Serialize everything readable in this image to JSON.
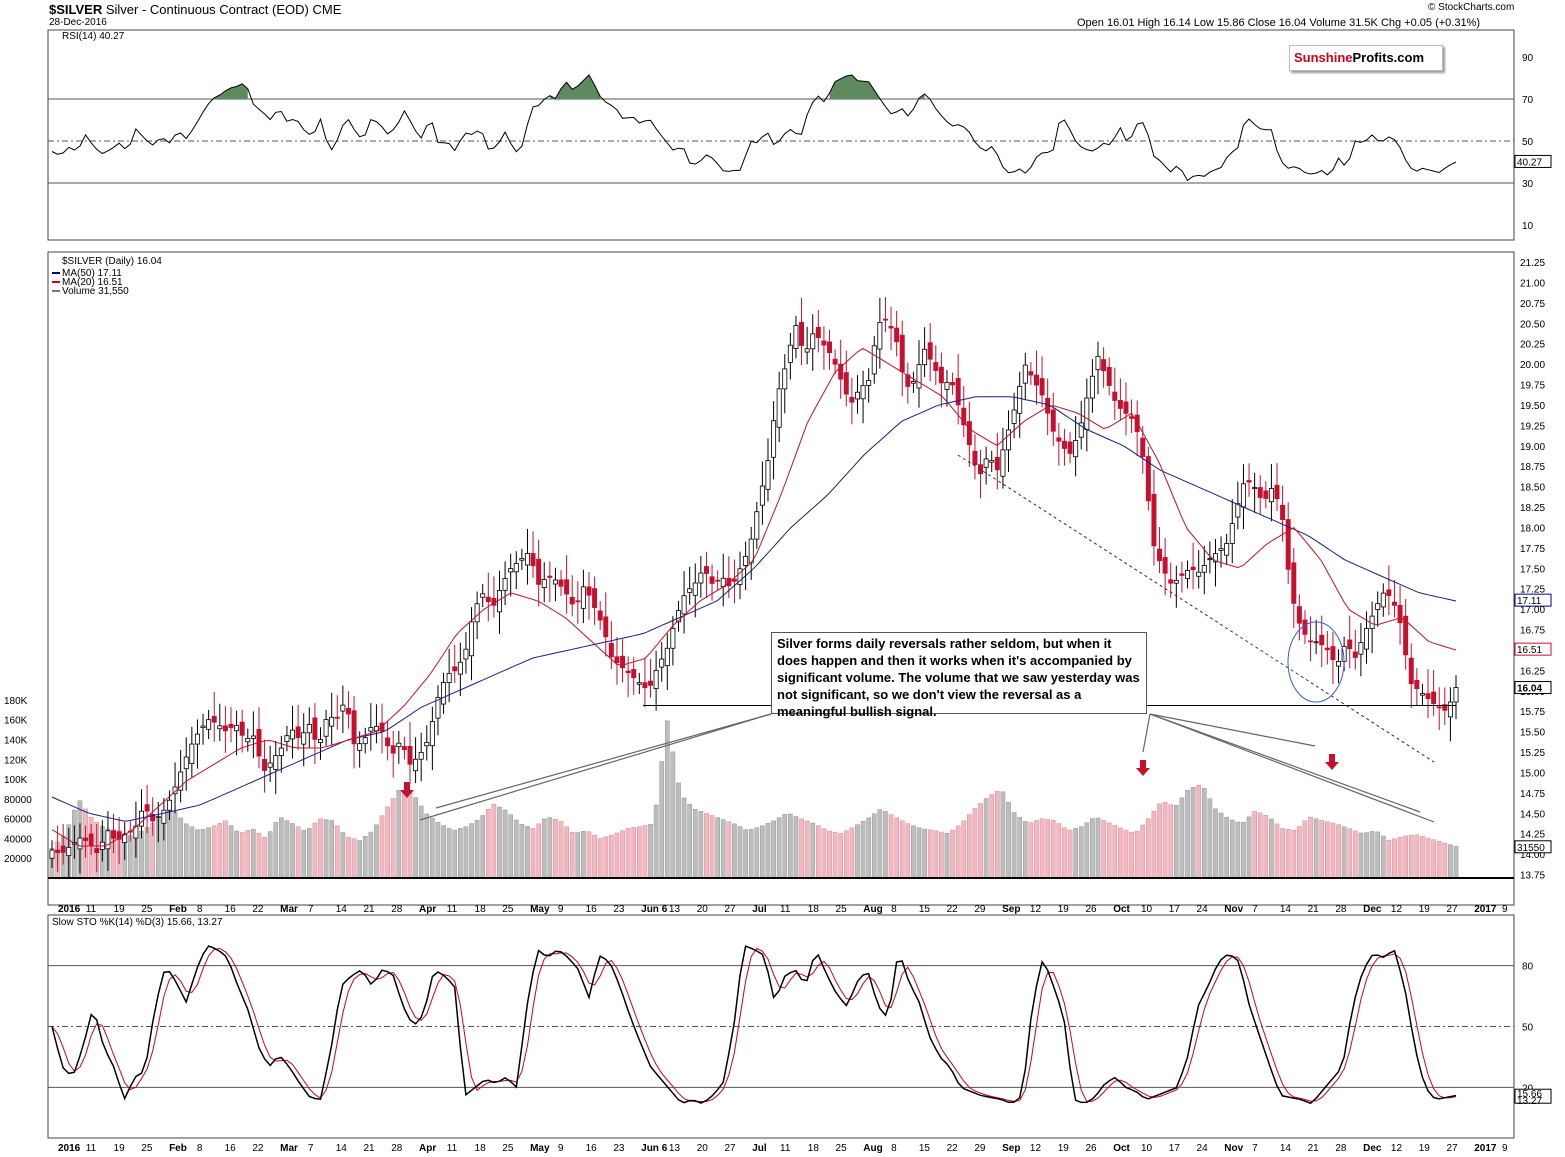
{
  "header": {
    "symbol": "$SILVER",
    "description": "Silver - Continuous Contract (EOD)",
    "exchange": "CME",
    "date": "28-Dec-2016",
    "credit": "© StockCharts.com",
    "ohlc": "Open 16.01  High 16.14  Low 15.86  Close 16.04  Volume 31.5K  Chg +0.05 (+0.31%)"
  },
  "logo": {
    "part1": "Sunshine",
    "part2": "Profits.com"
  },
  "annotation": "Silver forms daily reversals rather seldom, but when it does happen and then it works when it's accompanied by significant volume. The volume that we saw yesterday was not significant, so we don't view the reversal as a meaningful bullish signal.",
  "chart_data": [
    {
      "type": "line",
      "title": "RSI(14) 40.27",
      "ylim": [
        0,
        100
      ],
      "y_ticks": [
        "90",
        "70",
        "50",
        "30",
        "10"
      ],
      "reference_lines": [
        70,
        50,
        30
      ],
      "last_value_label": "40.27",
      "y_sample": [
        45,
        43,
        47,
        45,
        53,
        47,
        44,
        46,
        49,
        45,
        56,
        51,
        48,
        52,
        49,
        55,
        51,
        57,
        64,
        70,
        72,
        75,
        76,
        78,
        67,
        64,
        60,
        66,
        59,
        61,
        55,
        52,
        61,
        44,
        51,
        62,
        55,
        50,
        61,
        58,
        53,
        57,
        65,
        56,
        51,
        62,
        48,
        50,
        45,
        54,
        53,
        56,
        45,
        48,
        55,
        44,
        48,
        66,
        67,
        72,
        70,
        79,
        74,
        78,
        82,
        72,
        68,
        66,
        60,
        62,
        58,
        61,
        55,
        50,
        45,
        48,
        38,
        40,
        44,
        40,
        35,
        36,
        36,
        50,
        49,
        55,
        47,
        53,
        56,
        51,
        65,
        72,
        68,
        78,
        80,
        82,
        78,
        79,
        73,
        67,
        62,
        66,
        61,
        70,
        73,
        66,
        61,
        57,
        58,
        55,
        48,
        45,
        48,
        38,
        34,
        37,
        34,
        42,
        45,
        44,
        63,
        56,
        48,
        46,
        45,
        49,
        48,
        57,
        48,
        58,
        59,
        43,
        40,
        35,
        39,
        31,
        34,
        33,
        36,
        37,
        44,
        46,
        62,
        58,
        55,
        56,
        41,
        37,
        38,
        35,
        34,
        36,
        33,
        42,
        37,
        50,
        49,
        53,
        49,
        52,
        50,
        41,
        35,
        37,
        36,
        35,
        38,
        40
      ],
      "x_label_note": "x axis shared with price panel"
    },
    {
      "type": "candlestick",
      "title": "$SILVER (Daily) 16.04",
      "legend": [
        {
          "name": "MA(50) 17.11",
          "color": "#00008b"
        },
        {
          "name": "MA(20) 16.51",
          "color": "#d0021b"
        },
        {
          "name": "Volume 31,550",
          "color": "#777777"
        }
      ],
      "ylim": [
        13.5,
        21.25
      ],
      "y_ticks": [
        "21.25",
        "21.00",
        "20.75",
        "20.50",
        "20.25",
        "20.00",
        "19.75",
        "19.50",
        "19.25",
        "19.00",
        "18.75",
        "18.50",
        "18.25",
        "18.00",
        "17.75",
        "17.50",
        "17.25",
        "17.00",
        "16.75",
        "16.50",
        "16.25",
        "16.00",
        "15.75",
        "15.50",
        "15.25",
        "15.00",
        "14.75",
        "14.50",
        "14.25",
        "14.00",
        "13.75"
      ],
      "last_values": {
        "MA50": "17.11",
        "MA20": "16.51",
        "close": "16.04"
      },
      "x_ticks": [
        "2016",
        "11",
        "19",
        "25",
        "Feb",
        "8",
        "16",
        "22",
        "Mar",
        "7",
        "14",
        "21",
        "28",
        "Apr",
        "11",
        "18",
        "25",
        "May",
        "9",
        "16",
        "23",
        "Jun 6",
        "13",
        "20",
        "27",
        "Jul",
        "11",
        "18",
        "25",
        "Aug",
        "8",
        "15",
        "22",
        "29",
        "Sep",
        "12",
        "19",
        "26",
        "Oct",
        "10",
        "17",
        "24",
        "Nov",
        "7",
        "14",
        "21",
        "28",
        "Dec",
        "12",
        "19",
        "27",
        "2017",
        "9"
      ],
      "close_sample": [
        14.05,
        14.0,
        14.1,
        14.2,
        14.15,
        14.0,
        14.3,
        14.15,
        14.25,
        14.3,
        14.6,
        14.4,
        14.5,
        14.7,
        15.0,
        15.3,
        15.5,
        15.65,
        15.6,
        15.5,
        15.6,
        15.4,
        15.45,
        15.0,
        15.15,
        15.3,
        15.55,
        15.4,
        15.6,
        15.3,
        15.7,
        15.65,
        15.9,
        15.3,
        15.4,
        15.6,
        15.5,
        15.2,
        15.4,
        15.1,
        15.2,
        15.4,
        15.9,
        16.2,
        16.25,
        16.45,
        17.0,
        17.2,
        17.0,
        17.3,
        17.5,
        17.6,
        17.7,
        17.3,
        17.4,
        17.35,
        17.2,
        17.0,
        17.3,
        17.05,
        16.8,
        16.4,
        16.3,
        16.2,
        16.1,
        16.0,
        16.3,
        16.5,
        16.9,
        17.2,
        17.3,
        17.5,
        17.3,
        17.4,
        17.25,
        17.5,
        17.75,
        18.3,
        18.8,
        19.6,
        20.0,
        20.5,
        20.1,
        20.4,
        20.25,
        20.1,
        19.8,
        19.5,
        19.7,
        19.8,
        20.5,
        20.55,
        20.3,
        19.7,
        19.8,
        20.2,
        20.0,
        19.75,
        19.8,
        19.4,
        19.0,
        18.6,
        18.9,
        18.7,
        19.1,
        19.5,
        20.0,
        19.8,
        19.6,
        19.2,
        19.0,
        18.9,
        19.2,
        19.7,
        20.1,
        19.8,
        19.5,
        19.4,
        19.3,
        18.8,
        17.8,
        17.5,
        17.3,
        17.4,
        17.5,
        17.45,
        17.6,
        17.7,
        17.8,
        18.2,
        18.6,
        18.5,
        18.3,
        18.5,
        18.2,
        17.2,
        16.8,
        16.6,
        16.6,
        16.5,
        16.3,
        16.6,
        16.4,
        16.7,
        16.95,
        17.2,
        17.15,
        16.8,
        16.1,
        16.0,
        15.9,
        15.8,
        15.75,
        16.04
      ],
      "ma20_sample": [
        14.3,
        14.1,
        14.1,
        14.3,
        14.6,
        14.9,
        15.1,
        15.3,
        15.4,
        15.3,
        15.3,
        15.4,
        15.5,
        15.8,
        16.2,
        16.7,
        17.0,
        17.2,
        17.1,
        16.9,
        16.6,
        16.3,
        16.4,
        16.8,
        17.1,
        17.3,
        17.6,
        18.4,
        19.3,
        19.9,
        20.2,
        20.0,
        19.8,
        19.6,
        19.2,
        19.0,
        19.3,
        19.5,
        19.4,
        19.2,
        19.4,
        18.8,
        18.0,
        17.6,
        17.5,
        17.8,
        18.0,
        17.6,
        17.0,
        16.8,
        16.9,
        16.6,
        16.5
      ],
      "ma50_sample": [
        14.7,
        14.5,
        14.4,
        14.5,
        14.6,
        14.8,
        15.0,
        15.2,
        15.4,
        15.5,
        15.8,
        16.0,
        16.2,
        16.4,
        16.5,
        16.6,
        16.7,
        16.9,
        17.1,
        17.5,
        18.0,
        18.4,
        18.9,
        19.3,
        19.5,
        19.6,
        19.6,
        19.5,
        19.2,
        19.0,
        18.7,
        18.5,
        18.3,
        18.1,
        17.9,
        17.6,
        17.4,
        17.2,
        17.1
      ],
      "support_levels": [
        15.82,
        15.82
      ],
      "notes": "Dashed declining support line, blue ellipse around late-November reversal, red arrows marking volume spikes"
    },
    {
      "type": "bar",
      "title": "Volume",
      "ylim": [
        0,
        190000
      ],
      "y_ticks": [
        "180K",
        "160K",
        "140K",
        "120K",
        "100K",
        "80000",
        "60000",
        "40000",
        "20000"
      ],
      "last_value_label": "31550",
      "values_sample_k": [
        30,
        45,
        80,
        60,
        50,
        48,
        42,
        50,
        60,
        70,
        55,
        48,
        52,
        58,
        45,
        50,
        40,
        62,
        55,
        47,
        60,
        58,
        42,
        38,
        48,
        70,
        90,
        85,
        65,
        55,
        48,
        52,
        60,
        75,
        68,
        55,
        50,
        62,
        58,
        45,
        48,
        40,
        44,
        50,
        52,
        55,
        160,
        85,
        70,
        65,
        60,
        55,
        48,
        52,
        58,
        66,
        60,
        55,
        48,
        45,
        52,
        60,
        70,
        62,
        55,
        50,
        48,
        45,
        55,
        70,
        82,
        90,
        65,
        55,
        60,
        58,
        48,
        52,
        62,
        56,
        50,
        45,
        60,
        78,
        72,
        90,
        95,
        70,
        60,
        55,
        68,
        62,
        50,
        48,
        62,
        58,
        55,
        50,
        45,
        48,
        38,
        42,
        44,
        40,
        36,
        32
      ]
    },
    {
      "type": "line",
      "title": "Slow STO %K(14) %D(3) 15.66, 13.27",
      "ylim": [
        0,
        100
      ],
      "y_ticks": [
        "80",
        "50",
        "20"
      ],
      "reference_lines": [
        80,
        50,
        20
      ],
      "last_values": [
        "15.66",
        "13.27"
      ],
      "series": [
        {
          "name": "%K(14)",
          "color": "#000000"
        },
        {
          "name": "%D(3)",
          "color": "#d0021b"
        }
      ],
      "k_sample": [
        50,
        30,
        25,
        40,
        60,
        40,
        30,
        14,
        25,
        28,
        60,
        80,
        72,
        62,
        78,
        90,
        88,
        84,
        70,
        58,
        40,
        30,
        36,
        30,
        22,
        15,
        14,
        38,
        70,
        75,
        78,
        70,
        78,
        76,
        60,
        50,
        56,
        78,
        75,
        70,
        16,
        20,
        24,
        22,
        25,
        20,
        60,
        88,
        84,
        88,
        84,
        78,
        64,
        85,
        82,
        70,
        55,
        42,
        30,
        24,
        18,
        12,
        14,
        12,
        16,
        22,
        48,
        90,
        88,
        85,
        62,
        75,
        78,
        70,
        88,
        76,
        66,
        60,
        72,
        78,
        60,
        54,
        88,
        72,
        62,
        45,
        35,
        30,
        20,
        18,
        16,
        15,
        14,
        12,
        16,
        62,
        84,
        70,
        55,
        14,
        12,
        15,
        22,
        25,
        20,
        18,
        14,
        16,
        18,
        20,
        35,
        60,
        70,
        82,
        86,
        82,
        60,
        45,
        30,
        16,
        15,
        14,
        12,
        18,
        24,
        30,
        60,
        78,
        86,
        84,
        88,
        70,
        40,
        20,
        14,
        15,
        16
      ]
    }
  ]
}
